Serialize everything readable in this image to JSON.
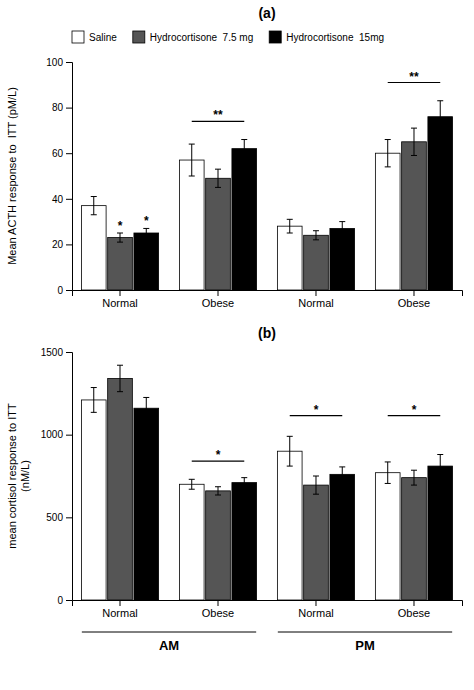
{
  "chart_data": [
    {
      "type": "bar",
      "title": "(a)",
      "y_label": "Mean ACTH response to  ITT (pM/L)",
      "categories": [
        "Normal",
        "Obese",
        "Normal",
        "Obese"
      ],
      "series": [
        {
          "name": "Saline",
          "color": "white",
          "values": [
            37,
            57,
            28,
            60
          ],
          "errors": [
            4,
            7,
            3,
            6
          ]
        },
        {
          "name": "Hydrocortisone  7.5 mg",
          "color": "#555555",
          "values": [
            23,
            49,
            24,
            65
          ],
          "errors": [
            2,
            4,
            2,
            6
          ]
        },
        {
          "name": "Hydrocortisone  15mg",
          "color": "black",
          "values": [
            25,
            62,
            27,
            76
          ],
          "errors": [
            2,
            4,
            3,
            7
          ]
        }
      ],
      "ylim": [
        0,
        100
      ],
      "yticks": [
        0,
        20,
        40,
        60,
        80,
        100
      ],
      "grid": false,
      "legend": "top",
      "annotations": [
        {
          "text": "*",
          "category": 0,
          "series": 1
        },
        {
          "text": "*",
          "category": 0,
          "series": 2
        },
        {
          "text": "**",
          "category": 1,
          "y": 74
        },
        {
          "text": "**",
          "category": 3,
          "y": 91
        }
      ]
    },
    {
      "type": "bar",
      "title": "(b)",
      "y_label": "mean cortisol response to ITT\n(nM/L)",
      "categories": [
        "Normal",
        "Obese",
        "Normal",
        "Obese"
      ],
      "series": [
        {
          "color": "white",
          "values": [
            1210,
            700,
            900,
            770
          ],
          "errors": [
            75,
            30,
            90,
            65
          ]
        },
        {
          "color": "#555555",
          "values": [
            1340,
            660,
            695,
            740
          ],
          "errors": [
            80,
            25,
            55,
            45
          ]
        },
        {
          "color": "black",
          "values": [
            1160,
            710,
            760,
            810
          ],
          "errors": [
            65,
            30,
            45,
            70
          ]
        }
      ],
      "ylim": [
        0,
        1500
      ],
      "yticks": [
        0,
        500,
        1000,
        1500
      ],
      "grid": false,
      "annotations": [
        {
          "text": "*",
          "category": 1,
          "y": 840
        },
        {
          "text": "*",
          "category": 2,
          "y": 1115
        },
        {
          "text": "*",
          "category": 3,
          "y": 1115
        }
      ],
      "category_groups": [
        {
          "label": "AM",
          "categories": [
            0,
            1
          ]
        },
        {
          "label": "PM",
          "categories": [
            2,
            3
          ]
        }
      ]
    }
  ]
}
